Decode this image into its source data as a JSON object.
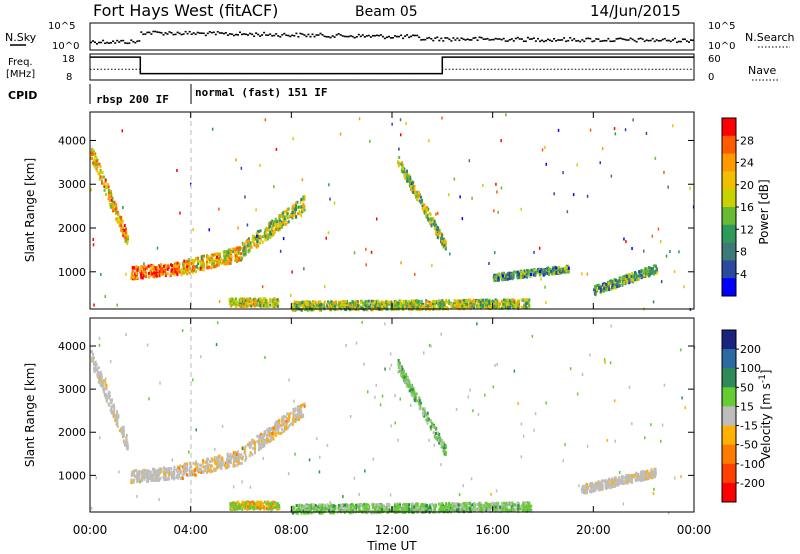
{
  "header": {
    "radar": "Fort Hays West (fitACF)",
    "beam": "Beam 05",
    "date": "14/Jun/2015"
  },
  "noise_panel": {
    "left_label": "N.Sky",
    "left_ticks": [
      "10^5",
      "10^0"
    ],
    "right_label": "N.Search",
    "right_ticks": [
      "10^5",
      "10^0"
    ]
  },
  "freq_panel": {
    "left_label_line1": "Freq.",
    "left_label_line2": "[MHz]",
    "left_ticks": [
      "18",
      "8"
    ],
    "right_label": "Nave",
    "right_ticks": [
      "60",
      "0"
    ],
    "freq_segments": [
      {
        "from_h": 0.0,
        "to_h": 2.0,
        "frac": 0.95
      },
      {
        "from_h": 2.0,
        "to_h": 14.0,
        "frac": 0.2
      },
      {
        "from_h": 14.0,
        "to_h": 24.0,
        "frac": 0.95
      }
    ],
    "nave_segments": [
      {
        "from_h": 0.0,
        "to_h": 2.0,
        "frac": 0.4
      },
      {
        "from_h": 2.0,
        "to_h": 14.0,
        "frac": 0.2
      },
      {
        "from_h": 14.0,
        "to_h": 24.0,
        "frac": 0.4
      }
    ]
  },
  "cpid_panel": {
    "label": "CPID",
    "modes": [
      {
        "name": "rbsp 200 IF",
        "start_h": 0.0
      },
      {
        "name": "normal (fast) 151 IF",
        "start_h": 4.0
      }
    ]
  },
  "chart_data": [
    {
      "type": "heatmap",
      "name": "power",
      "ylabel": "Slant Range [km]",
      "xlabel": "",
      "ylim": [
        150,
        4650
      ],
      "xlim_hours": [
        0,
        24
      ],
      "yticks": [
        1000,
        2000,
        3000,
        4000
      ],
      "colorbar": {
        "label": "Power [dB]",
        "ticks": [
          "28",
          "24",
          "20",
          "16",
          "12",
          "8",
          "4"
        ],
        "colors": [
          "#ff0000",
          "#ff5a00",
          "#ff9900",
          "#f0c000",
          "#c8d200",
          "#66bb33",
          "#2e9a5a",
          "#3c7a78",
          "#2a4aa0",
          "#0000ff"
        ]
      },
      "features": [
        {
          "from_h": 0.0,
          "to_h": 1.5,
          "r_from": 3800,
          "r_to": 1700,
          "width_km": 350,
          "level": 0.65
        },
        {
          "from_h": 1.6,
          "to_h": 3.5,
          "r_from": 1000,
          "r_to": 1100,
          "width_km": 280,
          "level": 0.85
        },
        {
          "from_h": 3.5,
          "to_h": 6.0,
          "r_from": 1100,
          "r_to": 1450,
          "width_km": 320,
          "level": 0.6
        },
        {
          "from_h": 6.0,
          "to_h": 8.5,
          "r_from": 1500,
          "r_to": 2600,
          "width_km": 350,
          "level": 0.45
        },
        {
          "from_h": 12.2,
          "to_h": 14.1,
          "r_from": 3600,
          "r_to": 1600,
          "width_km": 250,
          "level": 0.4
        },
        {
          "from_h": 5.5,
          "to_h": 7.5,
          "r_from": 330,
          "r_to": 330,
          "width_km": 180,
          "level": 0.5
        },
        {
          "from_h": 8.0,
          "to_h": 17.5,
          "r_from": 250,
          "r_to": 300,
          "width_km": 200,
          "level": 0.45
        },
        {
          "from_h": 16.0,
          "to_h": 19.0,
          "r_from": 900,
          "r_to": 1100,
          "width_km": 150,
          "level": 0.25
        },
        {
          "from_h": 20.0,
          "to_h": 22.5,
          "r_from": 600,
          "r_to": 1100,
          "width_km": 200,
          "level": 0.3
        }
      ]
    },
    {
      "type": "heatmap",
      "name": "velocity",
      "ylabel": "Slant Range [km]",
      "xlabel": "Time UT",
      "ylim": [
        150,
        4650
      ],
      "xlim_hours": [
        0,
        24
      ],
      "yticks": [
        1000,
        2000,
        3000,
        4000
      ],
      "xticks": [
        "00:00",
        "04:00",
        "08:00",
        "12:00",
        "16:00",
        "20:00",
        "00:00"
      ],
      "colorbar": {
        "label": "Velocity [m s^-1]",
        "ticks": [
          "200",
          "100",
          "50",
          "15",
          "-15",
          "-50",
          "-100",
          "-200"
        ],
        "colors": [
          "#1a237e",
          "#2a6aa0",
          "#2e8b57",
          "#66cc33",
          "#bdbdbd",
          "#ffb000",
          "#ff7a00",
          "#ff4000",
          "#ff0000"
        ]
      },
      "features": [
        {
          "from_h": 0.0,
          "to_h": 1.5,
          "r_from": 3800,
          "r_to": 1700,
          "width_km": 350,
          "kind": "gray"
        },
        {
          "from_h": 1.6,
          "to_h": 3.5,
          "r_from": 1000,
          "r_to": 1100,
          "width_km": 280,
          "kind": "gray"
        },
        {
          "from_h": 3.5,
          "to_h": 6.0,
          "r_from": 1100,
          "r_to": 1450,
          "width_km": 320,
          "kind": "grayorange"
        },
        {
          "from_h": 6.0,
          "to_h": 8.5,
          "r_from": 1500,
          "r_to": 2600,
          "width_km": 350,
          "kind": "grayorange"
        },
        {
          "from_h": 12.2,
          "to_h": 14.1,
          "r_from": 3600,
          "r_to": 1600,
          "width_km": 250,
          "kind": "green"
        },
        {
          "from_h": 5.5,
          "to_h": 7.5,
          "r_from": 330,
          "r_to": 330,
          "width_km": 180,
          "kind": "greenorange"
        },
        {
          "from_h": 8.0,
          "to_h": 17.5,
          "r_from": 250,
          "r_to": 300,
          "width_km": 200,
          "kind": "green"
        },
        {
          "from_h": 19.5,
          "to_h": 22.5,
          "r_from": 700,
          "r_to": 1100,
          "width_km": 200,
          "kind": "gray"
        }
      ]
    }
  ]
}
